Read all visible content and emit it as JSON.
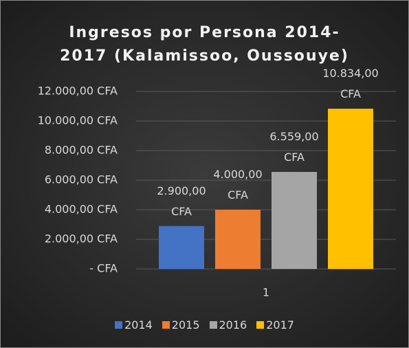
{
  "chart_data": {
    "type": "bar",
    "title": [
      "Ingresos por Persona 2014-",
      "2017 (Kalamissoo, Oussouye)"
    ],
    "categories": [
      "1"
    ],
    "series": [
      {
        "name": "2014",
        "color": "#4472c4",
        "values": [
          2900
        ],
        "value_labels": [
          "2.900,00 CFA"
        ]
      },
      {
        "name": "2015",
        "color": "#ed7d31",
        "values": [
          4000
        ],
        "value_labels": [
          "4.000,00 CFA"
        ]
      },
      {
        "name": "2016",
        "color": "#a5a5a5",
        "values": [
          6559
        ],
        "value_labels": [
          "6.559,00 CFA"
        ]
      },
      {
        "name": "2017",
        "color": "#ffc000",
        "values": [
          10834
        ],
        "value_labels": [
          "10.834,00 CFA"
        ]
      }
    ],
    "ylim": [
      0,
      12000
    ],
    "yticks": [
      {
        "value": 0,
        "label": "-   CFA"
      },
      {
        "value": 2000,
        "label": "2.000,00 CFA"
      },
      {
        "value": 4000,
        "label": "4.000,00 CFA"
      },
      {
        "value": 6000,
        "label": "6.000,00 CFA"
      },
      {
        "value": 8000,
        "label": "8.000,00 CFA"
      },
      {
        "value": 10000,
        "label": "10.000,00 CFA"
      },
      {
        "value": 12000,
        "label": "12.000,00 CFA"
      }
    ],
    "grid": true,
    "legend": "bottom"
  }
}
